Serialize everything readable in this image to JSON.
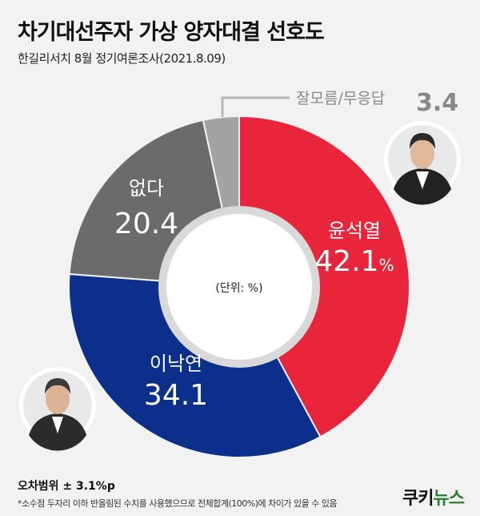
{
  "header": {
    "title": "차기대선주자 가상 양자대결 선호도",
    "subtitle": "한길리서치 8월 정기여론조사(2021.8.09)"
  },
  "chart_data": {
    "type": "pie",
    "categories": [
      "윤석열",
      "이낙연",
      "없다",
      "잘모름/무응답"
    ],
    "values": [
      42.1,
      34.1,
      20.4,
      3.4
    ],
    "value_labels": [
      "42.1%",
      "34.1",
      "20.4",
      "3.4"
    ],
    "colors": [
      "#e8253a",
      "#0b2f8a",
      "#6b6b6b",
      "#a3a3a3"
    ],
    "center_note": "(단위: %)",
    "donut": true
  },
  "footer": {
    "margin_note": "오차범위 ± 3.1%p",
    "footnote": "*소수점 두자리 이하 반올림된 수치를 사용했으므로 전체합계(100%)에 차이가 있을 수 있음",
    "logo_left": "쿠키",
    "logo_right": "뉴스"
  },
  "icons": {
    "yoon": "person-avatar-icon",
    "lee": "person-avatar-icon"
  }
}
